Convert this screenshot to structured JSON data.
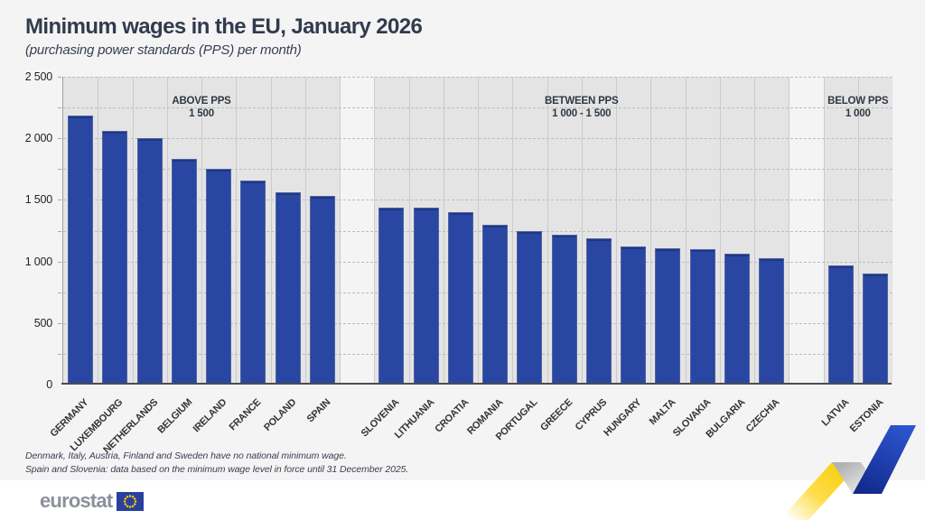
{
  "header": {
    "title": "Minimum wages in the EU, January 2026",
    "subtitle": "(purchasing power standards (PPS) per month)"
  },
  "chart_data": {
    "type": "bar",
    "title": "Minimum wages in the EU, January 2026",
    "subtitle": "(purchasing power standards (PPS) per month)",
    "unit": "PPS per month",
    "ylim": [
      0,
      2500
    ],
    "minor_grid_step": 250,
    "grid": "dashed horizontal, minor every 250",
    "bar_color": "#2946a3",
    "group_background": "#e4e4e4",
    "yticks": [
      {
        "value": 0,
        "label": "0"
      },
      {
        "value": 500,
        "label": "500"
      },
      {
        "value": 1000,
        "label": "1 000"
      },
      {
        "value": 1500,
        "label": "1 500"
      },
      {
        "value": 2000,
        "label": "2 000"
      },
      {
        "value": 2500,
        "label": "2 500"
      }
    ],
    "groups": [
      {
        "label_line1": "ABOVE PPS",
        "label_line2": "1 500",
        "categories": [
          "GERMANY",
          "LUXEMBOURG",
          "NETHERLANDS",
          "BELGIUM",
          "IRELAND",
          "FRANCE",
          "POLAND",
          "SPAIN"
        ],
        "values": [
          2185,
          2060,
          2005,
          1830,
          1755,
          1655,
          1565,
          1530
        ]
      },
      {
        "label_line1": "BETWEEN PPS",
        "label_line2": "1 000 - 1 500",
        "categories": [
          "SLOVENIA",
          "LITHUANIA",
          "CROATIA",
          "ROMANIA",
          "PORTUGAL",
          "GREECE",
          "CYPRUS",
          "HUNGARY",
          "MALTA",
          "SLOVAKIA",
          "BULGARIA",
          "CZECHIA"
        ],
        "values": [
          1440,
          1435,
          1400,
          1295,
          1250,
          1215,
          1190,
          1125,
          1105,
          1100,
          1060,
          1025
        ]
      },
      {
        "label_line1": "BELOW PPS",
        "label_line2": "1 000",
        "categories": [
          "LATVIA",
          "ESTONIA"
        ],
        "values": [
          970,
          900
        ]
      }
    ]
  },
  "footnotes": [
    "Denmark, Italy, Austria, Finland and Sweden have no national minimum wage.",
    "Spain and Slovenia: data based on the minimum wage level in force until 31 December 2025."
  ],
  "footer": {
    "logo_text": "eurostat"
  },
  "colors": {
    "bar_blue": "#2946a3",
    "ribbon_yellow": "#fdd40f",
    "ribbon_blue_dark": "#122a8d",
    "ribbon_blue_light": "#2e56d0",
    "flag_blue": "#29409f",
    "flag_star_yellow": "#ffcc00",
    "title_text": "#323b4d"
  }
}
